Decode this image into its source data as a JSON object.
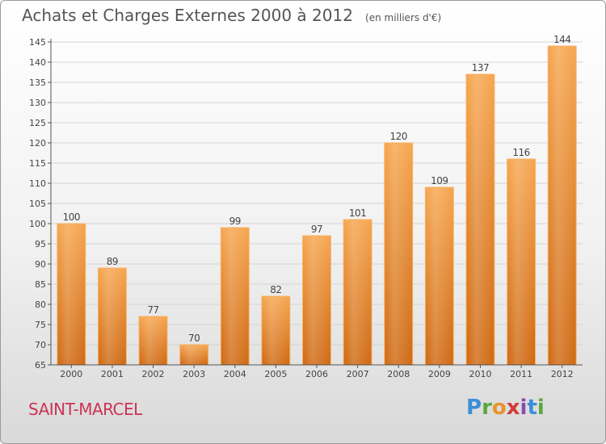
{
  "chart_data": {
    "type": "bar",
    "title": "Achats et Charges Externes 2000 à 2012",
    "subtitle": "(en milliers d'€)",
    "categories": [
      "2000",
      "2001",
      "2002",
      "2003",
      "2004",
      "2005",
      "2006",
      "2007",
      "2008",
      "2009",
      "2010",
      "2011",
      "2012"
    ],
    "values": [
      100,
      89,
      77,
      70,
      99,
      82,
      97,
      101,
      120,
      109,
      137,
      116,
      144
    ],
    "ylim": [
      65,
      145
    ],
    "yticks": [
      65,
      70,
      75,
      80,
      85,
      90,
      95,
      100,
      105,
      110,
      115,
      120,
      125,
      130,
      135,
      140,
      145
    ],
    "grid": true,
    "bar_color": "#f39a40"
  },
  "location": "SAINT-MARCEL",
  "logo": {
    "letters": [
      "P",
      "r",
      "o",
      "x",
      "i",
      "t",
      "i"
    ],
    "colors": [
      "#3b8fd6",
      "#5aa83b",
      "#e8932a",
      "#d23a3a",
      "#8a4bb0",
      "#3b8fd6",
      "#5aa83b"
    ]
  }
}
